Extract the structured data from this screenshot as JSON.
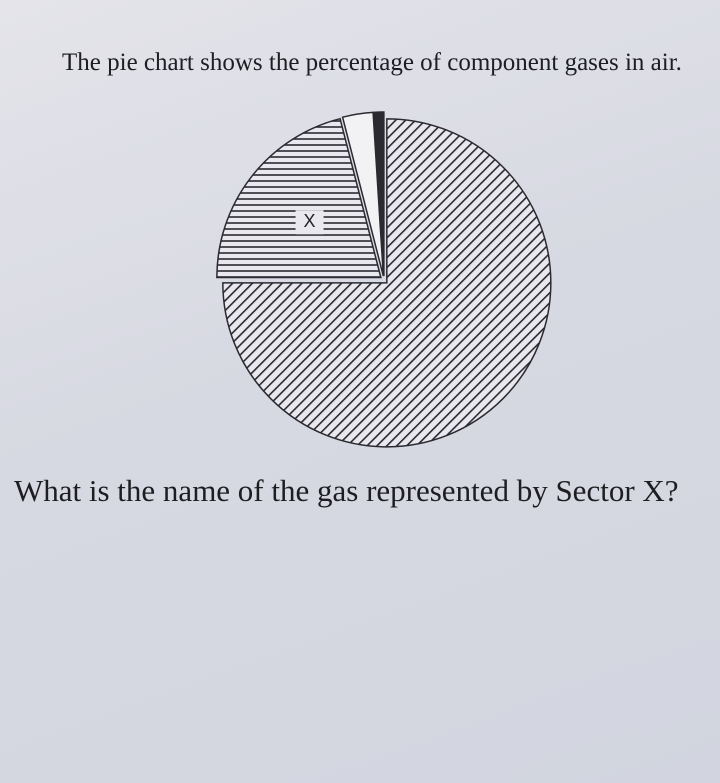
{
  "chart_data": {
    "type": "pie",
    "title": "The pie chart shows the percentage of component gases in air.",
    "question": "What is the name of the gas represented by Sector X?",
    "categories": [
      null,
      "X",
      null,
      null
    ],
    "values": [
      75,
      21,
      3,
      1
    ],
    "patterns": [
      "diagonal",
      "horizontal",
      "none",
      "solid"
    ],
    "start_angle": -90,
    "direction": "clockwise"
  }
}
